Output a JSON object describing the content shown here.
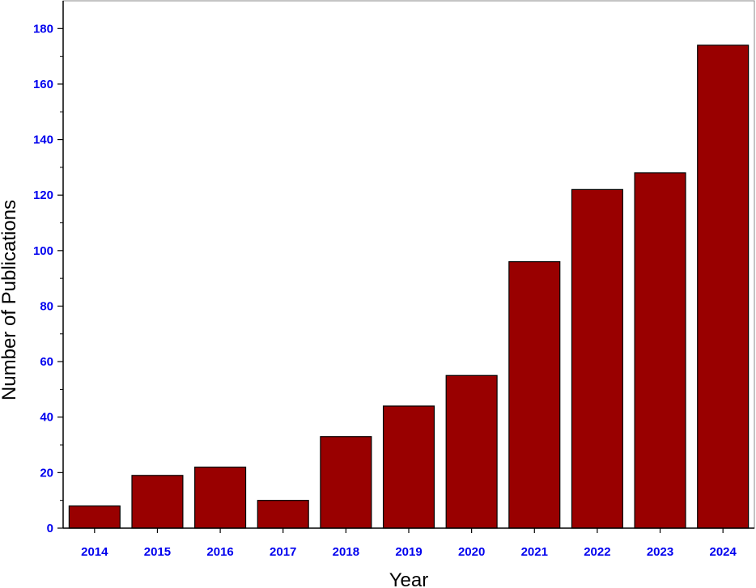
{
  "chart_data": {
    "type": "bar",
    "categories": [
      "2014",
      "2015",
      "2016",
      "2017",
      "2018",
      "2019",
      "2020",
      "2021",
      "2022",
      "2023",
      "2024"
    ],
    "values": [
      8,
      19,
      22,
      10,
      33,
      44,
      55,
      96,
      122,
      128,
      174
    ],
    "xlabel": "Year",
    "ylabel": "Number of Publications",
    "ylim": [
      0,
      190
    ],
    "yticks": [
      0,
      20,
      40,
      60,
      80,
      100,
      120,
      140,
      160,
      180
    ],
    "grid": false,
    "legend": "none",
    "colors": {
      "bar_fill": "#990000",
      "bar_stroke": "#000000",
      "tick_label": "#0000ee",
      "axis": "#000000"
    }
  }
}
